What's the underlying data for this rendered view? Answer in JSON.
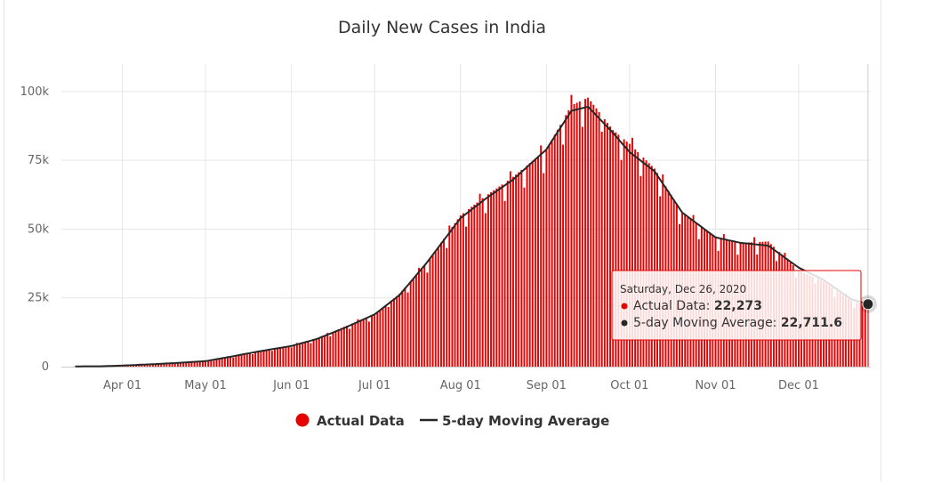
{
  "chart_data": {
    "type": "bar",
    "title": "Daily New Cases in India",
    "xlabel": "",
    "ylabel": "",
    "ylim": [
      0,
      110000
    ],
    "y_ticks": [
      0,
      25000,
      50000,
      75000,
      100000
    ],
    "y_tick_labels": [
      "0",
      "25k",
      "50k",
      "75k",
      "100k"
    ],
    "x_range": [
      "2020-03-15",
      "2020-12-26"
    ],
    "x_ticks": [
      "2020-04-01",
      "2020-05-01",
      "2020-06-01",
      "2020-07-01",
      "2020-08-01",
      "2020-09-01",
      "2020-10-01",
      "2020-11-01",
      "2020-12-01"
    ],
    "x_tick_labels": [
      "Apr 01",
      "May 01",
      "Jun 01",
      "Jul 01",
      "Aug 01",
      "Sep 01",
      "Oct 01",
      "Nov 01",
      "Dec 01"
    ],
    "grid": true,
    "legend_position": "bottom",
    "series": [
      {
        "name": "Actual Data",
        "type": "bar",
        "color": "#e60000",
        "points": [
          [
            "2020-03-15",
            100
          ],
          [
            "2020-03-25",
            150
          ],
          [
            "2020-04-01",
            400
          ],
          [
            "2020-04-10",
            800
          ],
          [
            "2020-04-20",
            1300
          ],
          [
            "2020-05-01",
            1900
          ],
          [
            "2020-05-10",
            3500
          ],
          [
            "2020-05-20",
            5400
          ],
          [
            "2020-06-01",
            7800
          ],
          [
            "2020-06-10",
            10000
          ],
          [
            "2020-06-20",
            14500
          ],
          [
            "2020-07-01",
            19000
          ],
          [
            "2020-07-10",
            26500
          ],
          [
            "2020-07-20",
            38000
          ],
          [
            "2020-08-01",
            55000
          ],
          [
            "2020-08-10",
            62000
          ],
          [
            "2020-08-20",
            69000
          ],
          [
            "2020-09-01",
            79000
          ],
          [
            "2020-09-10",
            95000
          ],
          [
            "2020-09-16",
            97800
          ],
          [
            "2020-09-25",
            86000
          ],
          [
            "2020-10-01",
            81000
          ],
          [
            "2020-10-10",
            72000
          ],
          [
            "2020-10-20",
            56000
          ],
          [
            "2020-11-01",
            47000
          ],
          [
            "2020-11-10",
            45000
          ],
          [
            "2020-11-20",
            45500
          ],
          [
            "2020-12-01",
            35000
          ],
          [
            "2020-12-10",
            31000
          ],
          [
            "2020-12-20",
            24000
          ],
          [
            "2020-12-26",
            22273
          ]
        ]
      },
      {
        "name": "5-day Moving Average",
        "type": "line",
        "color": "#262626",
        "points": [
          [
            "2020-03-15",
            100
          ],
          [
            "2020-03-25",
            150
          ],
          [
            "2020-04-01",
            400
          ],
          [
            "2020-04-10",
            800
          ],
          [
            "2020-04-20",
            1300
          ],
          [
            "2020-05-01",
            2000
          ],
          [
            "2020-05-10",
            3600
          ],
          [
            "2020-05-20",
            5500
          ],
          [
            "2020-06-01",
            7500
          ],
          [
            "2020-06-10",
            10000
          ],
          [
            "2020-06-20",
            14000
          ],
          [
            "2020-07-01",
            19000
          ],
          [
            "2020-07-10",
            26000
          ],
          [
            "2020-07-20",
            38000
          ],
          [
            "2020-08-01",
            54000
          ],
          [
            "2020-08-10",
            61000
          ],
          [
            "2020-08-20",
            68000
          ],
          [
            "2020-09-01",
            79000
          ],
          [
            "2020-09-10",
            93000
          ],
          [
            "2020-09-16",
            94500
          ],
          [
            "2020-09-25",
            85000
          ],
          [
            "2020-10-01",
            78000
          ],
          [
            "2020-10-10",
            71000
          ],
          [
            "2020-10-20",
            56000
          ],
          [
            "2020-11-01",
            47000
          ],
          [
            "2020-11-10",
            45000
          ],
          [
            "2020-11-20",
            44000
          ],
          [
            "2020-12-01",
            36000
          ],
          [
            "2020-12-10",
            31500
          ],
          [
            "2020-12-20",
            24500
          ],
          [
            "2020-12-26",
            22711.6
          ]
        ]
      }
    ],
    "tooltip": {
      "date": "Saturday, Dec 26, 2020",
      "rows": [
        {
          "label": "Actual Data: ",
          "value": "22,273",
          "color": "#e60000"
        },
        {
          "label": "5-day Moving Average: ",
          "value": "22,711.6",
          "color": "#262626"
        }
      ]
    },
    "legend": [
      {
        "label": "Actual Data",
        "marker": "circle",
        "color": "#e60000"
      },
      {
        "label": "5-day Moving Average",
        "marker": "line",
        "color": "#262626"
      }
    ]
  }
}
